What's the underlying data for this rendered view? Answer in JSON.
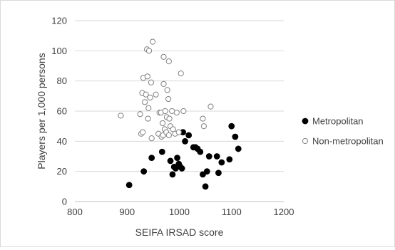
{
  "chart_data": {
    "type": "scatter",
    "title": "",
    "xlabel": "SEIFA IRSAD score",
    "ylabel": "Players per 1,000 persons",
    "xlim": [
      800,
      1200
    ],
    "ylim": [
      0,
      120
    ],
    "xticks": [
      800,
      900,
      1000,
      1100,
      1200
    ],
    "yticks": [
      0,
      20,
      40,
      60,
      80,
      100,
      120
    ],
    "grid": "horizontal",
    "legend_position": "right",
    "series": [
      {
        "name": "Metropolitan",
        "marker": "filled-circle",
        "color": "#000000",
        "points": [
          [
            904,
            11
          ],
          [
            932,
            20
          ],
          [
            947,
            29
          ],
          [
            967,
            33
          ],
          [
            983,
            27
          ],
          [
            987,
            18
          ],
          [
            990,
            23
          ],
          [
            993,
            22
          ],
          [
            996,
            29
          ],
          [
            999,
            25
          ],
          [
            1002,
            23
          ],
          [
            1005,
            22
          ],
          [
            1007,
            46
          ],
          [
            1011,
            40
          ],
          [
            1018,
            44
          ],
          [
            1027,
            36
          ],
          [
            1031,
            36
          ],
          [
            1035,
            35
          ],
          [
            1040,
            33
          ],
          [
            1045,
            18
          ],
          [
            1050,
            10
          ],
          [
            1053,
            20
          ],
          [
            1057,
            30
          ],
          [
            1072,
            30
          ],
          [
            1075,
            19
          ],
          [
            1081,
            26
          ],
          [
            1096,
            28
          ],
          [
            1100,
            50
          ],
          [
            1107,
            43
          ],
          [
            1113,
            35
          ]
        ]
      },
      {
        "name": "Non-metropolitan",
        "marker": "open-circle",
        "color": "#808080",
        "points": [
          [
            888,
            57
          ],
          [
            925,
            58
          ],
          [
            927,
            45
          ],
          [
            929,
            72
          ],
          [
            930,
            46
          ],
          [
            931,
            82
          ],
          [
            934,
            66
          ],
          [
            936,
            71
          ],
          [
            938,
            101
          ],
          [
            939,
            83
          ],
          [
            940,
            55
          ],
          [
            941,
            62
          ],
          [
            942,
            100
          ],
          [
            944,
            69
          ],
          [
            946,
            79
          ],
          [
            947,
            42
          ],
          [
            949,
            106
          ],
          [
            955,
            71
          ],
          [
            960,
            45
          ],
          [
            962,
            59
          ],
          [
            965,
            59
          ],
          [
            966,
            43
          ],
          [
            968,
            52
          ],
          [
            969,
            44
          ],
          [
            970,
            96
          ],
          [
            970,
            78
          ],
          [
            972,
            48
          ],
          [
            973,
            60
          ],
          [
            975,
            46
          ],
          [
            976,
            56
          ],
          [
            977,
            74
          ],
          [
            979,
            68
          ],
          [
            980,
            44
          ],
          [
            980,
            93
          ],
          [
            981,
            55
          ],
          [
            983,
            50
          ],
          [
            986,
            60
          ],
          [
            988,
            48
          ],
          [
            992,
            45
          ],
          [
            995,
            59
          ],
          [
            999,
            46
          ],
          [
            1003,
            85
          ],
          [
            1008,
            60
          ],
          [
            1045,
            55
          ],
          [
            1047,
            50
          ],
          [
            1060,
            63
          ]
        ]
      }
    ]
  }
}
